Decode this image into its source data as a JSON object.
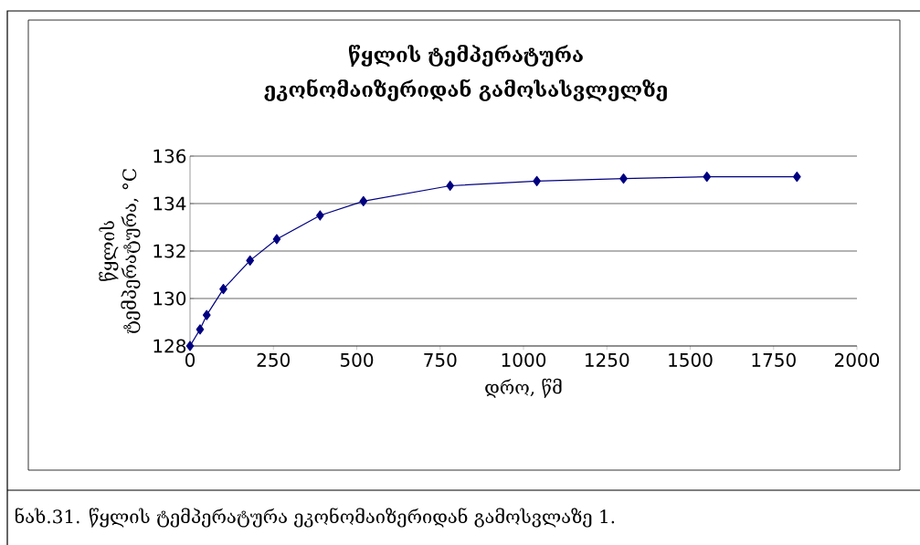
{
  "chart_data": {
    "type": "line",
    "title": "წყლის ტემპერატურა ეკონომაიზერიდან გამოსასვლელზე",
    "xlabel": "დრო, წმ",
    "ylabel": "წყლის ტემპერატურა, °C",
    "x": [
      0,
      30,
      50,
      100,
      180,
      260,
      390,
      520,
      780,
      1040,
      1300,
      1550,
      1820
    ],
    "series": [
      {
        "color": "#000080",
        "values": [
          128.0,
          128.7,
          129.3,
          130.4,
          131.6,
          132.5,
          133.5,
          134.1,
          134.75,
          134.95,
          135.05,
          135.13,
          135.13
        ]
      }
    ],
    "xlim": [
      0,
      2000
    ],
    "xticks": [
      0,
      250,
      500,
      750,
      1000,
      1250,
      1500,
      1750,
      2000
    ],
    "ylim": [
      128,
      136
    ],
    "yticks": [
      128,
      130,
      132,
      134,
      136
    ],
    "grid": "y",
    "marker": "diamond",
    "line_style": "solid",
    "annotations": [
      "ნახ.31. წყლის ტემპერატურა ეკონომაიზერიდან გამოსვლაზე 1."
    ]
  }
}
